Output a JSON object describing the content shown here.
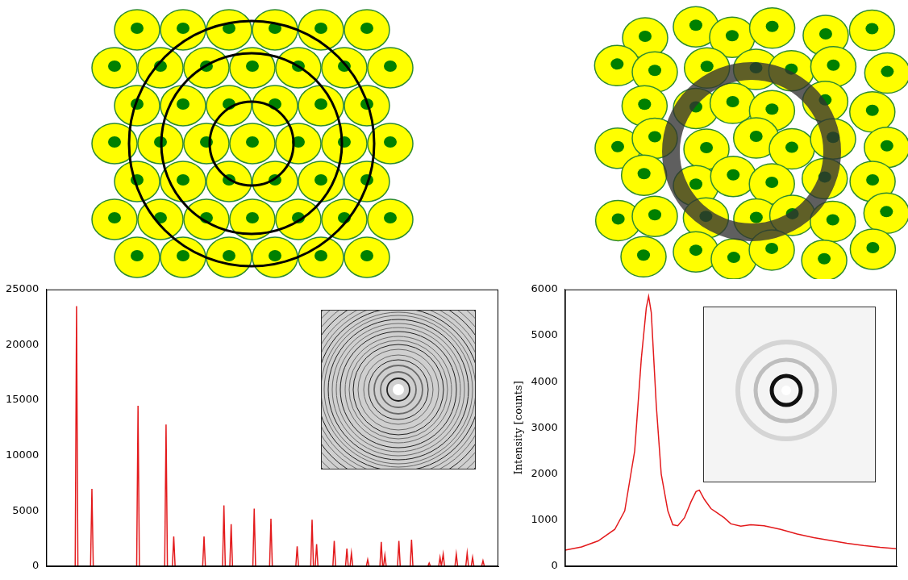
{
  "chart_data": [
    {
      "type": "line",
      "color": "#e31a1c",
      "x": [
        0,
        6.4,
        6.7,
        7.0,
        9.8,
        10.1,
        10.4,
        20.0,
        20.3,
        20.6,
        26.2,
        26.5,
        26.8,
        27.9,
        28.2,
        28.5,
        34.6,
        34.9,
        35.2,
        39.0,
        39.3,
        39.6,
        40.6,
        40.9,
        41.2,
        45.7,
        46.0,
        46.3,
        49.4,
        49.7,
        50.0,
        55.2,
        55.5,
        55.8,
        58.5,
        58.8,
        59.1,
        59.5,
        59.8,
        60.1,
        63.4,
        63.7,
        64.0,
        66.2,
        66.5,
        66.8,
        67.2,
        67.5,
        67.8,
        70.8,
        71.1,
        71.4,
        73.8,
        74.1,
        74.4,
        74.6,
        74.9,
        75.2,
        77.7,
        78.0,
        78.3,
        80.5,
        80.8,
        81.1,
        84.4,
        84.7,
        85.0,
        86.8,
        87.1,
        87.4,
        87.5,
        87.8,
        88.1,
        90.4,
        90.7,
        91.0,
        92.8,
        93.1,
        93.4,
        94.0,
        94.3,
        94.6,
        96.3,
        96.6,
        96.9,
        100
      ],
      "values": [
        0,
        0,
        23500,
        0,
        0,
        7000,
        0,
        0,
        14500,
        0,
        0,
        12800,
        0,
        0,
        2700,
        0,
        0,
        2700,
        0,
        0,
        5500,
        0,
        0,
        3800,
        0,
        0,
        5200,
        0,
        0,
        4300,
        0,
        0,
        1800,
        0,
        0,
        4200,
        0,
        0,
        2000,
        0,
        0,
        2300,
        0,
        0,
        1600,
        0,
        0,
        1200,
        0,
        0,
        600,
        0,
        0,
        2200,
        0,
        0,
        1000,
        0,
        0,
        2300,
        0,
        0,
        2400,
        0,
        0,
        300,
        0,
        0,
        800,
        0,
        0,
        1100,
        0,
        0,
        1100,
        0,
        0,
        1200,
        0,
        0,
        800,
        0,
        0,
        500,
        0,
        0
      ],
      "xlim": [
        0,
        100
      ],
      "ylim": [
        0,
        25000
      ],
      "yticks": [
        0,
        5000,
        10000,
        15000,
        20000,
        25000
      ],
      "tick_labels": "y",
      "grid": false
    },
    {
      "type": "line",
      "color": "#e31a1c",
      "y_label": "Intensity [counts]",
      "x": [
        0,
        5,
        10,
        15,
        18,
        21,
        23,
        24.5,
        25.2,
        26,
        27.5,
        29,
        31,
        32.5,
        34,
        36,
        38,
        39.5,
        40.5,
        42,
        44,
        46,
        48,
        50,
        53,
        56,
        60,
        65,
        70,
        75,
        80,
        85,
        90,
        95,
        100
      ],
      "values": [
        350,
        420,
        550,
        800,
        1200,
        2500,
        4500,
        5600,
        5850,
        5500,
        3500,
        2000,
        1200,
        900,
        880,
        1050,
        1400,
        1620,
        1650,
        1450,
        1250,
        1150,
        1050,
        920,
        870,
        900,
        880,
        800,
        700,
        620,
        560,
        500,
        450,
        410,
        380
      ],
      "xlim": [
        0,
        100
      ],
      "ylim": [
        0,
        6000
      ],
      "yticks": [
        0,
        1000,
        2000,
        3000,
        4000,
        5000,
        6000
      ],
      "tick_labels": "y",
      "grid": false
    }
  ]
}
